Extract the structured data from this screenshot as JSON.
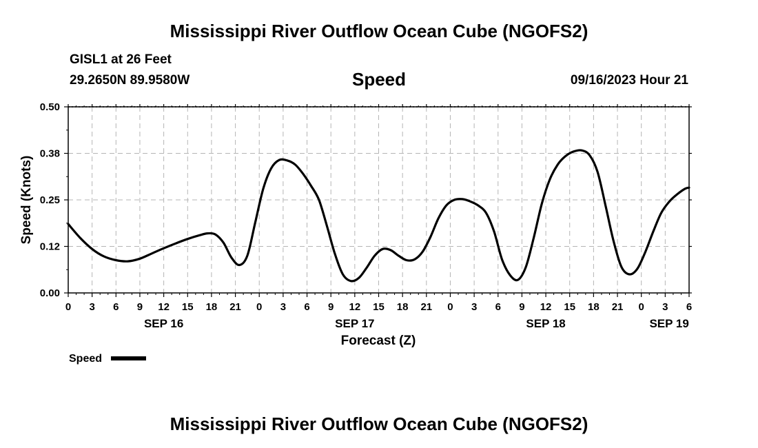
{
  "page": {
    "title_top": "Mississippi River Outflow Ocean Cube (NGOFS2)",
    "title_bottom": "Mississippi River Outflow Ocean Cube (NGOFS2)",
    "station": "GISL1 at 26 Feet",
    "coords": "29.2650N  89.9580W",
    "datetime": "09/16/2023 Hour 21"
  },
  "chart_data": {
    "type": "line",
    "title": "Speed",
    "xlabel": "Forecast (Z)",
    "ylabel": "Speed (Knots)",
    "x_unit": "hours since 00Z SEP 16",
    "xlim": [
      0,
      78
    ],
    "ylim": [
      0,
      0.5
    ],
    "y_ticks": [
      "0.00",
      "0.12",
      "0.25",
      "0.38",
      "0.50"
    ],
    "y_tick_values": [
      0,
      0.125,
      0.25,
      0.375,
      0.5
    ],
    "x_tick_labels": [
      "0",
      "3",
      "6",
      "9",
      "12",
      "15",
      "18",
      "21",
      "0",
      "3",
      "6",
      "9",
      "12",
      "15",
      "18",
      "21",
      "0",
      "3",
      "6",
      "9",
      "12",
      "15",
      "18",
      "21",
      "0",
      "3",
      "6"
    ],
    "x_tick_values": [
      0,
      3,
      6,
      9,
      12,
      15,
      18,
      21,
      24,
      27,
      30,
      33,
      36,
      39,
      42,
      45,
      48,
      51,
      54,
      57,
      60,
      63,
      66,
      69,
      72,
      75,
      78
    ],
    "date_labels": [
      {
        "label": "SEP 16",
        "x": 12
      },
      {
        "label": "SEP 17",
        "x": 36
      },
      {
        "label": "SEP 18",
        "x": 60
      },
      {
        "label": "SEP 19",
        "x": 75.5
      }
    ],
    "legend": "Speed",
    "grid": true,
    "series": [
      {
        "name": "Speed",
        "color": "#000000",
        "x": [
          0,
          1.5,
          3,
          4.5,
          6,
          7.5,
          9,
          10.5,
          12,
          13.5,
          15,
          16.5,
          17.5,
          18.5,
          19.5,
          20.5,
          21.5,
          22.5,
          23.5,
          24.5,
          25.5,
          26.5,
          27.5,
          28.5,
          29.5,
          30.5,
          31.5,
          32.5,
          33.5,
          34.5,
          35.5,
          36.5,
          37.5,
          38.5,
          39.5,
          40.5,
          41.5,
          42.5,
          43.5,
          44.5,
          45.5,
          46.5,
          47.5,
          48.5,
          49.5,
          50.5,
          51.5,
          52.5,
          53.5,
          54.5,
          55.5,
          56.5,
          57.5,
          58.5,
          59.5,
          60.5,
          61.5,
          62.5,
          63.5,
          64.5,
          65.5,
          66.5,
          67.5,
          68.5,
          69.5,
          70.5,
          71.5,
          72.5,
          73.5,
          74.5,
          75.5,
          76.5,
          77.5,
          78
        ],
        "values": [
          0.185,
          0.148,
          0.118,
          0.098,
          0.088,
          0.085,
          0.092,
          0.106,
          0.12,
          0.133,
          0.145,
          0.155,
          0.16,
          0.157,
          0.135,
          0.095,
          0.075,
          0.1,
          0.19,
          0.28,
          0.335,
          0.357,
          0.356,
          0.345,
          0.32,
          0.288,
          0.25,
          0.18,
          0.105,
          0.05,
          0.032,
          0.04,
          0.068,
          0.1,
          0.118,
          0.115,
          0.1,
          0.088,
          0.09,
          0.11,
          0.15,
          0.2,
          0.235,
          0.25,
          0.252,
          0.246,
          0.235,
          0.215,
          0.165,
          0.09,
          0.048,
          0.035,
          0.07,
          0.15,
          0.24,
          0.305,
          0.345,
          0.368,
          0.38,
          0.383,
          0.37,
          0.325,
          0.235,
          0.14,
          0.07,
          0.05,
          0.065,
          0.11,
          0.165,
          0.215,
          0.245,
          0.265,
          0.28,
          0.283
        ]
      }
    ]
  }
}
